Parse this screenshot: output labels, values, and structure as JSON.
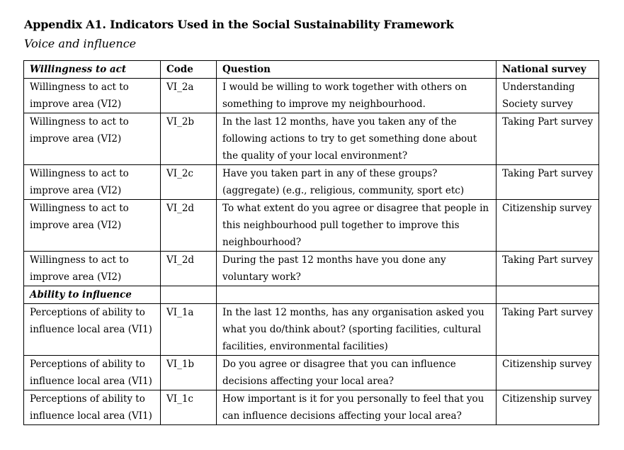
{
  "title": "Appendix A1. Indicators Used in the Social Sustainability Framework",
  "subtitle": "Voice and influence",
  "table": {
    "headers": {
      "indicator": "Willingness to act",
      "code": "Code",
      "question": "Question",
      "survey": "National survey"
    },
    "rows": [
      {
        "indicator": "Willingness to act to improve area (VI2)",
        "code": "VI_2a",
        "question": "I would be willing to work together with others on something to improve my neighbourhood.",
        "survey": "Understanding Society survey"
      },
      {
        "indicator": "Willingness to act to improve area (VI2)",
        "code": "VI_2b",
        "question": "In the last 12 months, have you taken any of the following actions to try to get something done about the quality of your local environment?",
        "survey": "Taking Part survey"
      },
      {
        "indicator": "Willingness to act to improve area (VI2)",
        "code": "VI_2c",
        "question": "Have you taken part in any of these groups? (aggregate) (e.g., religious, community, sport etc)",
        "survey": "Taking Part survey"
      },
      {
        "indicator": "Willingness to act to improve area (VI2)",
        "code": "VI_2d",
        "question": "To what extent do you agree or disagree that people in this neighbourhood pull together to improve this neighbourhood?",
        "survey": "Citizenship survey"
      },
      {
        "indicator": "Willingness to act to improve area (VI2)",
        "code": "VI_2d",
        "question": "During the past 12 months have you done any voluntary work?",
        "survey": "Taking Part survey"
      }
    ],
    "section2": "Ability to influence",
    "rows2": [
      {
        "indicator": "Perceptions of ability to influence local area (VI1)",
        "code": "VI_1a",
        "question": "In the last 12 months, has any organisation asked you what you do/think about? (sporting facilities, cultural facilities, environmental facilities)",
        "survey": "Taking Part survey"
      },
      {
        "indicator": "Perceptions of ability to influence local area (VI1)",
        "code": "VI_1b",
        "question": "Do you agree or disagree that you can influence decisions affecting your local area?",
        "survey": "Citizenship survey"
      },
      {
        "indicator": "Perceptions of ability to influence local area (VI1)",
        "code": "VI_1c",
        "question": "How important is it for you personally to feel that you can influence decisions affecting your local area?",
        "survey": "Citizenship survey"
      }
    ]
  }
}
